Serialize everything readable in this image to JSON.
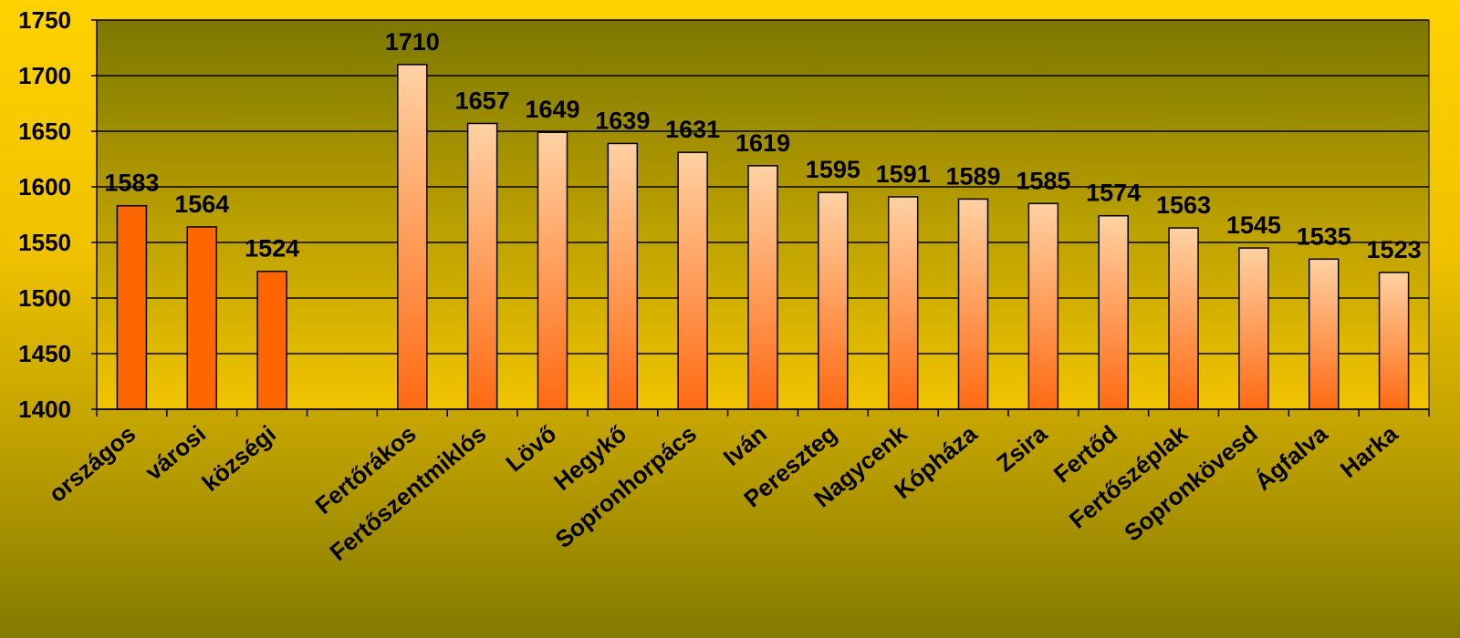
{
  "chart_data": {
    "type": "bar",
    "categories": [
      "országos",
      "városi",
      "községi",
      "",
      "Fertőrákos",
      "Fertőszentmiklós",
      "Lövő",
      "Hegykő",
      "Sopronhorpács",
      "Iván",
      "Pereszteg",
      "Nagycenk",
      "Kópháza",
      "Zsira",
      "Fertőd",
      "Fertőszéplak",
      "Sopronkövesd",
      "Ágfalva",
      "Harka"
    ],
    "values": [
      1583,
      1564,
      1524,
      null,
      1710,
      1657,
      1649,
      1639,
      1631,
      1619,
      1595,
      1591,
      1589,
      1585,
      1574,
      1563,
      1545,
      1535,
      1523
    ],
    "data_labels": [
      "1583",
      "1564",
      "1524",
      "",
      "1710",
      "1657",
      "1649",
      "1639",
      "1631",
      "1619",
      "1595",
      "1591",
      "1589",
      "1585",
      "1574",
      "1563",
      "1545",
      "1535",
      "1523"
    ],
    "highlighted_categories": [
      "országos",
      "városi",
      "községi"
    ],
    "ylim": [
      1400,
      1750
    ],
    "yticks": [
      "1400",
      "1450",
      "1500",
      "1550",
      "1600",
      "1650",
      "1700",
      "1750"
    ],
    "grid": true,
    "legend": "none",
    "title": "",
    "xlabel": "",
    "ylabel": "",
    "colors": {
      "highlight_bar": "#ff6600",
      "bar_top": "#ffd1a3",
      "bar_bottom": "#ff6a12",
      "plot_top": "#7d7800",
      "plot_bottom": "#f2c400",
      "axis": "#000000"
    }
  }
}
